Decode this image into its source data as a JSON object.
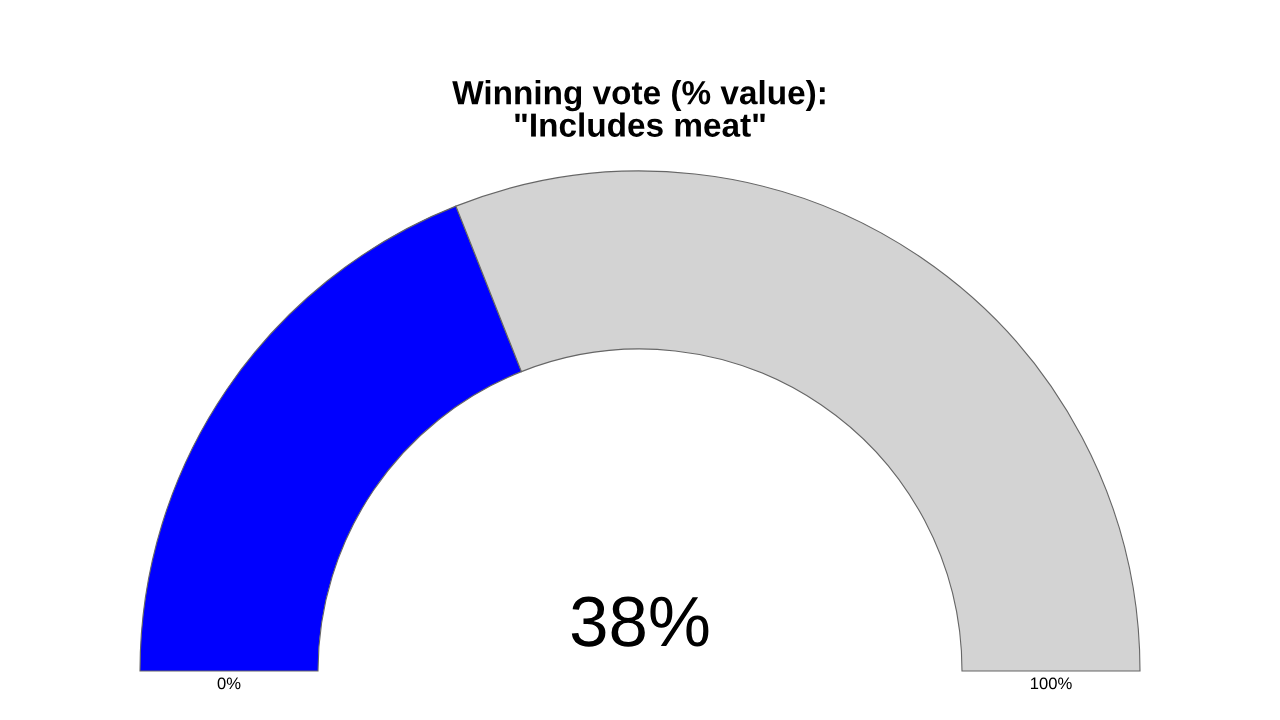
{
  "chart_data": {
    "type": "donut",
    "title": "Winning vote (% value):\n\"Includes meat\"",
    "categories": [
      null,
      null
    ],
    "values": [
      38,
      62
    ],
    "colors": [
      "#0000ff",
      "#d3d3d3"
    ],
    "annotations": [
      "38%",
      "0%",
      "100%"
    ]
  }
}
